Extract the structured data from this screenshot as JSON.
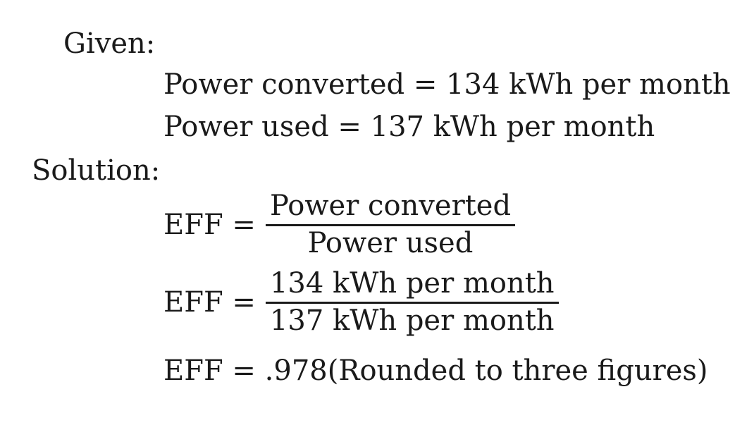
{
  "given": {
    "heading": "Given:",
    "line1": "Power converted = 134 kWh per month",
    "line2": "Power used = 137 kWh per month"
  },
  "solution": {
    "heading": "Solution:",
    "eq1": {
      "lhs": "EFF =",
      "numerator": "Power converted",
      "denominator": "Power used"
    },
    "eq2": {
      "lhs": "EFF =",
      "numerator": "134 kWh per month",
      "denominator": "137 kWh per month"
    },
    "eq3": "EFF = .978(Rounded to three figures)"
  }
}
